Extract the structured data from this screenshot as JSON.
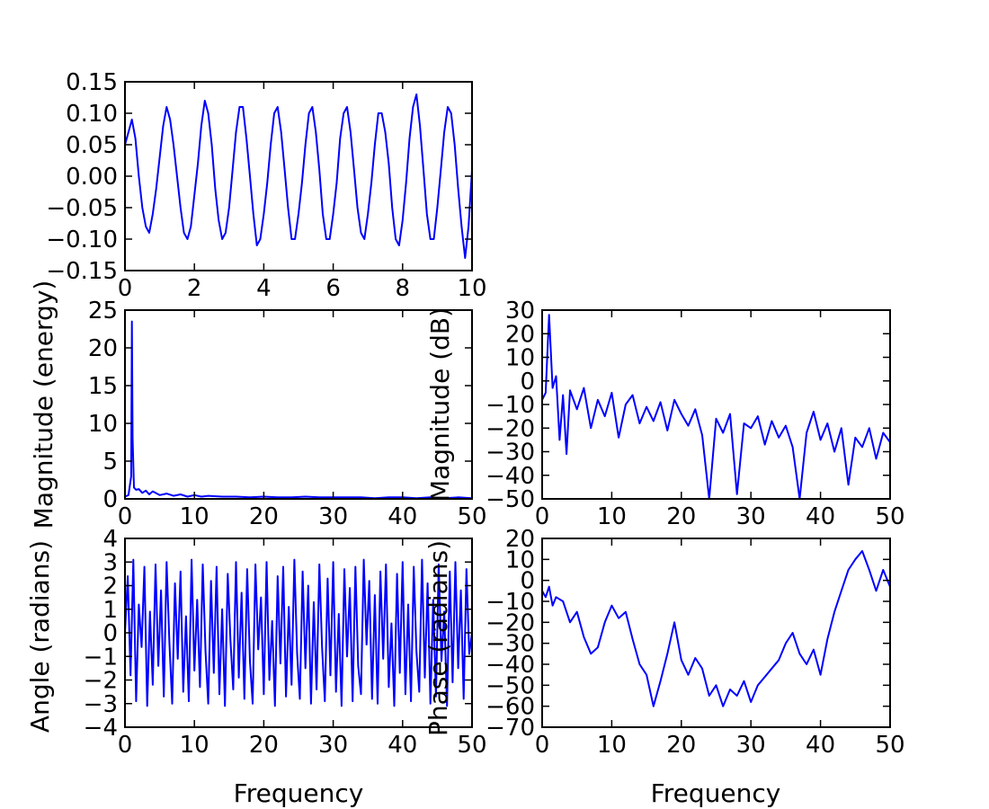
{
  "chart_data": [
    {
      "id": "signal",
      "type": "line",
      "title": "",
      "xlabel": "",
      "ylabel": "",
      "xlim": [
        0,
        10
      ],
      "ylim": [
        -0.15,
        0.15
      ],
      "xticks": [
        0,
        2,
        4,
        6,
        8,
        10
      ],
      "xtick_labels": [
        "0",
        "2",
        "4",
        "6",
        "8",
        "10"
      ],
      "yticks": [
        -0.15,
        -0.1,
        -0.05,
        0.0,
        0.05,
        0.1,
        0.15
      ],
      "ytick_labels": [
        "−0.15",
        "−0.10",
        "−0.05",
        "0.00",
        "0.05",
        "0.10",
        "0.15"
      ],
      "grid": false,
      "series": [
        {
          "color": "#0000ff",
          "x": [
            0.0,
            0.1,
            0.2,
            0.3,
            0.4,
            0.5,
            0.6,
            0.7,
            0.8,
            0.9,
            1.0,
            1.1,
            1.2,
            1.3,
            1.4,
            1.5,
            1.6,
            1.7,
            1.8,
            1.9,
            2.0,
            2.1,
            2.2,
            2.3,
            2.4,
            2.5,
            2.6,
            2.7,
            2.8,
            2.9,
            3.0,
            3.1,
            3.2,
            3.3,
            3.4,
            3.5,
            3.6,
            3.7,
            3.8,
            3.9,
            4.0,
            4.1,
            4.2,
            4.3,
            4.4,
            4.5,
            4.6,
            4.7,
            4.8,
            4.9,
            5.0,
            5.1,
            5.2,
            5.3,
            5.4,
            5.5,
            5.6,
            5.7,
            5.8,
            5.9,
            6.0,
            6.1,
            6.2,
            6.3,
            6.4,
            6.5,
            6.6,
            6.7,
            6.8,
            6.9,
            7.0,
            7.1,
            7.2,
            7.3,
            7.4,
            7.5,
            7.6,
            7.7,
            7.8,
            7.9,
            8.0,
            8.1,
            8.2,
            8.3,
            8.4,
            8.5,
            8.6,
            8.7,
            8.8,
            8.9,
            9.0,
            9.1,
            9.2,
            9.3,
            9.4,
            9.5,
            9.6,
            9.7,
            9.8,
            9.9,
            10.0
          ],
          "y": [
            0.05,
            0.07,
            0.09,
            0.06,
            0.0,
            -0.05,
            -0.08,
            -0.09,
            -0.06,
            -0.02,
            0.03,
            0.08,
            0.11,
            0.09,
            0.05,
            0.0,
            -0.05,
            -0.09,
            -0.1,
            -0.08,
            -0.03,
            0.02,
            0.08,
            0.12,
            0.1,
            0.05,
            -0.02,
            -0.07,
            -0.1,
            -0.09,
            -0.05,
            0.01,
            0.07,
            0.11,
            0.11,
            0.06,
            0.0,
            -0.06,
            -0.11,
            -0.1,
            -0.06,
            -0.01,
            0.05,
            0.1,
            0.11,
            0.07,
            0.01,
            -0.05,
            -0.1,
            -0.1,
            -0.06,
            -0.01,
            0.05,
            0.1,
            0.11,
            0.07,
            0.01,
            -0.06,
            -0.1,
            -0.1,
            -0.06,
            -0.01,
            0.06,
            0.1,
            0.11,
            0.07,
            0.01,
            -0.05,
            -0.09,
            -0.1,
            -0.06,
            -0.01,
            0.05,
            0.1,
            0.1,
            0.07,
            0.02,
            -0.05,
            -0.1,
            -0.11,
            -0.07,
            -0.01,
            0.06,
            0.11,
            0.13,
            0.08,
            0.01,
            -0.06,
            -0.1,
            -0.1,
            -0.05,
            0.01,
            0.07,
            0.11,
            0.1,
            0.05,
            -0.02,
            -0.08,
            -0.13,
            -0.08,
            0.01
          ]
        }
      ]
    },
    {
      "id": "magnitude-energy",
      "type": "line",
      "title": "",
      "xlabel": "",
      "ylabel": "Magnitude (energy)",
      "xlim": [
        0,
        50
      ],
      "ylim": [
        0,
        25
      ],
      "xticks": [
        0,
        10,
        20,
        30,
        40,
        50
      ],
      "xtick_labels": [
        "0",
        "10",
        "20",
        "30",
        "40",
        "50"
      ],
      "yticks": [
        0,
        5,
        10,
        15,
        20,
        25
      ],
      "ytick_labels": [
        "0",
        "5",
        "10",
        "15",
        "20",
        "25"
      ],
      "grid": false,
      "series": [
        {
          "color": "#0000ff",
          "x": [
            0.0,
            0.5,
            0.9,
            1.0,
            1.1,
            1.3,
            1.6,
            2.0,
            2.5,
            3.0,
            3.5,
            4.0,
            5.0,
            6.0,
            7.0,
            8.0,
            9.0,
            10.0,
            11.0,
            12.0,
            14.0,
            16.0,
            18.0,
            20.0,
            22.0,
            24.0,
            26.0,
            28.0,
            30.0,
            32.0,
            34.0,
            36.0,
            38.0,
            40.0,
            42.0,
            44.0,
            46.0,
            48.0,
            50.0
          ],
          "y": [
            0.3,
            0.5,
            3.0,
            23.5,
            8.0,
            1.5,
            1.2,
            1.3,
            0.8,
            1.1,
            0.6,
            1.0,
            0.5,
            0.7,
            0.4,
            0.6,
            0.3,
            0.5,
            0.3,
            0.4,
            0.3,
            0.3,
            0.2,
            0.3,
            0.2,
            0.2,
            0.3,
            0.2,
            0.2,
            0.2,
            0.2,
            0.1,
            0.2,
            0.2,
            0.1,
            0.2,
            0.1,
            0.2,
            0.1
          ]
        }
      ]
    },
    {
      "id": "magnitude-db",
      "type": "line",
      "title": "",
      "xlabel": "",
      "ylabel": "Magnitude (dB)",
      "xlim": [
        0,
        50
      ],
      "ylim": [
        -50,
        30
      ],
      "xticks": [
        0,
        10,
        20,
        30,
        40,
        50
      ],
      "xtick_labels": [
        "0",
        "10",
        "20",
        "30",
        "40",
        "50"
      ],
      "yticks": [
        -50,
        -40,
        -30,
        -20,
        -10,
        0,
        10,
        20,
        30
      ],
      "ytick_labels": [
        "−50",
        "−40",
        "−30",
        "−20",
        "−10",
        "0",
        "10",
        "20",
        "30"
      ],
      "grid": false,
      "series": [
        {
          "color": "#0000ff",
          "x": [
            0.0,
            0.5,
            1.0,
            1.5,
            2.0,
            2.5,
            3.0,
            3.5,
            4.0,
            5.0,
            6.0,
            7.0,
            8.0,
            9.0,
            10.0,
            11.0,
            12.0,
            13.0,
            14.0,
            15.0,
            16.0,
            17.0,
            18.0,
            19.0,
            20.0,
            21.0,
            22.0,
            23.0,
            24.0,
            25.0,
            26.0,
            27.0,
            28.0,
            29.0,
            30.0,
            31.0,
            32.0,
            33.0,
            34.0,
            35.0,
            36.0,
            37.0,
            38.0,
            39.0,
            40.0,
            41.0,
            42.0,
            43.0,
            44.0,
            45.0,
            46.0,
            47.0,
            48.0,
            49.0,
            50.0
          ],
          "y": [
            -8,
            -5,
            28,
            -3,
            2,
            -25,
            -6,
            -31,
            -4,
            -12,
            -3,
            -20,
            -8,
            -15,
            -5,
            -24,
            -10,
            -6,
            -18,
            -11,
            -17,
            -9,
            -21,
            -8,
            -14,
            -19,
            -12,
            -23,
            -50,
            -16,
            -22,
            -14,
            -48,
            -18,
            -20,
            -15,
            -27,
            -17,
            -24,
            -19,
            -28,
            -50,
            -22,
            -13,
            -25,
            -18,
            -30,
            -20,
            -44,
            -24,
            -28,
            -20,
            -33,
            -22,
            -26
          ]
        }
      ]
    },
    {
      "id": "angle",
      "type": "line",
      "title": "",
      "xlabel": "Frequency",
      "ylabel": "Angle (radians)",
      "xlim": [
        0,
        50
      ],
      "ylim": [
        -4,
        4
      ],
      "xticks": [
        0,
        10,
        20,
        30,
        40,
        50
      ],
      "xtick_labels": [
        "0",
        "10",
        "20",
        "30",
        "40",
        "50"
      ],
      "yticks": [
        -4,
        -3,
        -2,
        -1,
        0,
        1,
        2,
        3,
        4
      ],
      "ytick_labels": [
        "−4",
        "−3",
        "−2",
        "−1",
        "0",
        "1",
        "2",
        "3",
        "4"
      ],
      "grid": false,
      "series": [
        {
          "color": "#0000ff",
          "x": [
            0.0,
            0.4,
            0.8,
            1.2,
            1.6,
            2.0,
            2.4,
            2.8,
            3.2,
            3.6,
            4.0,
            4.4,
            4.8,
            5.2,
            5.6,
            6.0,
            6.4,
            6.8,
            7.2,
            7.6,
            8.0,
            8.4,
            8.8,
            9.2,
            9.6,
            10.0,
            10.4,
            10.8,
            11.2,
            11.6,
            12.0,
            12.4,
            12.8,
            13.2,
            13.6,
            14.0,
            14.4,
            14.8,
            15.2,
            15.6,
            16.0,
            16.4,
            16.8,
            17.2,
            17.6,
            18.0,
            18.4,
            18.8,
            19.2,
            19.6,
            20.0,
            20.4,
            20.8,
            21.2,
            21.6,
            22.0,
            22.4,
            22.8,
            23.2,
            23.6,
            24.0,
            24.4,
            24.8,
            25.2,
            25.6,
            26.0,
            26.4,
            26.8,
            27.2,
            27.6,
            28.0,
            28.4,
            28.8,
            29.2,
            29.6,
            30.0,
            30.4,
            30.8,
            31.2,
            31.6,
            32.0,
            32.4,
            32.8,
            33.2,
            33.6,
            34.0,
            34.4,
            34.8,
            35.2,
            35.6,
            36.0,
            36.4,
            36.8,
            37.2,
            37.6,
            38.0,
            38.4,
            38.8,
            39.2,
            39.6,
            40.0,
            40.4,
            40.8,
            41.2,
            41.6,
            42.0,
            42.4,
            42.8,
            43.2,
            43.6,
            44.0,
            44.4,
            44.8,
            45.2,
            45.6,
            46.0,
            46.4,
            46.8,
            47.2,
            47.6,
            48.0,
            48.4,
            48.8,
            49.2,
            49.6,
            50.0
          ],
          "y": [
            0.0,
            2.4,
            -1.8,
            3.1,
            -2.9,
            1.2,
            -0.6,
            2.8,
            -3.1,
            0.9,
            -2.2,
            2.9,
            -1.4,
            1.8,
            -2.7,
            3.0,
            -0.4,
            -3.0,
            2.1,
            -1.1,
            2.6,
            -2.5,
            0.7,
            -2.9,
            3.1,
            -1.6,
            1.4,
            -2.3,
            2.9,
            -0.8,
            -3.0,
            2.2,
            -1.7,
            2.8,
            -2.6,
            1.0,
            -3.1,
            2.5,
            -0.3,
            -2.4,
            3.0,
            -1.9,
            1.7,
            -2.8,
            2.7,
            -1.2,
            -3.0,
            2.9,
            -0.7,
            1.5,
            -2.6,
            3.0,
            -2.0,
            0.5,
            -3.1,
            2.4,
            -1.3,
            2.8,
            -2.7,
            1.1,
            -2.2,
            3.1,
            -0.9,
            -2.8,
            2.6,
            -1.5,
            2.0,
            -3.0,
            1.3,
            -2.4,
            2.9,
            -0.6,
            -2.9,
            2.3,
            -1.8,
            3.0,
            -2.5,
            0.8,
            -3.1,
            2.7,
            -1.0,
            1.9,
            -2.9,
            2.8,
            -1.4,
            -2.6,
            3.1,
            -0.5,
            2.2,
            -2.8,
            1.6,
            -3.0,
            2.6,
            -1.1,
            2.9,
            -2.3,
            0.4,
            -3.1,
            2.5,
            -1.7,
            3.0,
            -2.6,
            1.2,
            -2.9,
            2.8,
            -0.8,
            -2.5,
            3.1,
            -1.9,
            2.1,
            -3.0,
            1.4,
            -2.7,
            2.9,
            -1.2,
            0.9,
            -3.1,
            2.6,
            -2.1,
            3.0,
            -1.5,
            1.8,
            -2.8,
            2.7,
            -0.9,
            0.0
          ]
        }
      ]
    },
    {
      "id": "phase",
      "type": "line",
      "title": "",
      "xlabel": "Frequency",
      "ylabel": "Phase (radians)",
      "xlim": [
        0,
        50
      ],
      "ylim": [
        -70,
        20
      ],
      "xticks": [
        0,
        10,
        20,
        30,
        40,
        50
      ],
      "xtick_labels": [
        "0",
        "10",
        "20",
        "30",
        "40",
        "50"
      ],
      "yticks": [
        -70,
        -60,
        -50,
        -40,
        -30,
        -20,
        -10,
        0,
        10,
        20
      ],
      "ytick_labels": [
        "−70",
        "−60",
        "−50",
        "−40",
        "−30",
        "−20",
        "−10",
        "0",
        "10",
        "20"
      ],
      "grid": false,
      "series": [
        {
          "color": "#0000ff",
          "x": [
            0.0,
            0.5,
            1.0,
            1.5,
            2.0,
            3.0,
            4.0,
            5.0,
            6.0,
            7.0,
            8.0,
            9.0,
            10.0,
            11.0,
            12.0,
            13.0,
            14.0,
            15.0,
            16.0,
            17.0,
            18.0,
            19.0,
            20.0,
            21.0,
            22.0,
            23.0,
            24.0,
            25.0,
            26.0,
            27.0,
            28.0,
            29.0,
            30.0,
            31.0,
            32.0,
            33.0,
            34.0,
            35.0,
            36.0,
            37.0,
            38.0,
            39.0,
            40.0,
            41.0,
            42.0,
            43.0,
            44.0,
            45.0,
            46.0,
            47.0,
            48.0,
            49.0,
            50.0
          ],
          "y": [
            -5,
            -8,
            -3,
            -12,
            -8,
            -10,
            -20,
            -15,
            -27,
            -35,
            -32,
            -20,
            -12,
            -18,
            -15,
            -28,
            -40,
            -45,
            -60,
            -48,
            -35,
            -20,
            -38,
            -45,
            -37,
            -42,
            -55,
            -50,
            -60,
            -52,
            -55,
            -48,
            -58,
            -50,
            -46,
            -42,
            -38,
            -30,
            -25,
            -35,
            -40,
            -33,
            -45,
            -28,
            -15,
            -5,
            5,
            10,
            14,
            5,
            -5,
            5,
            -3
          ]
        }
      ]
    }
  ]
}
